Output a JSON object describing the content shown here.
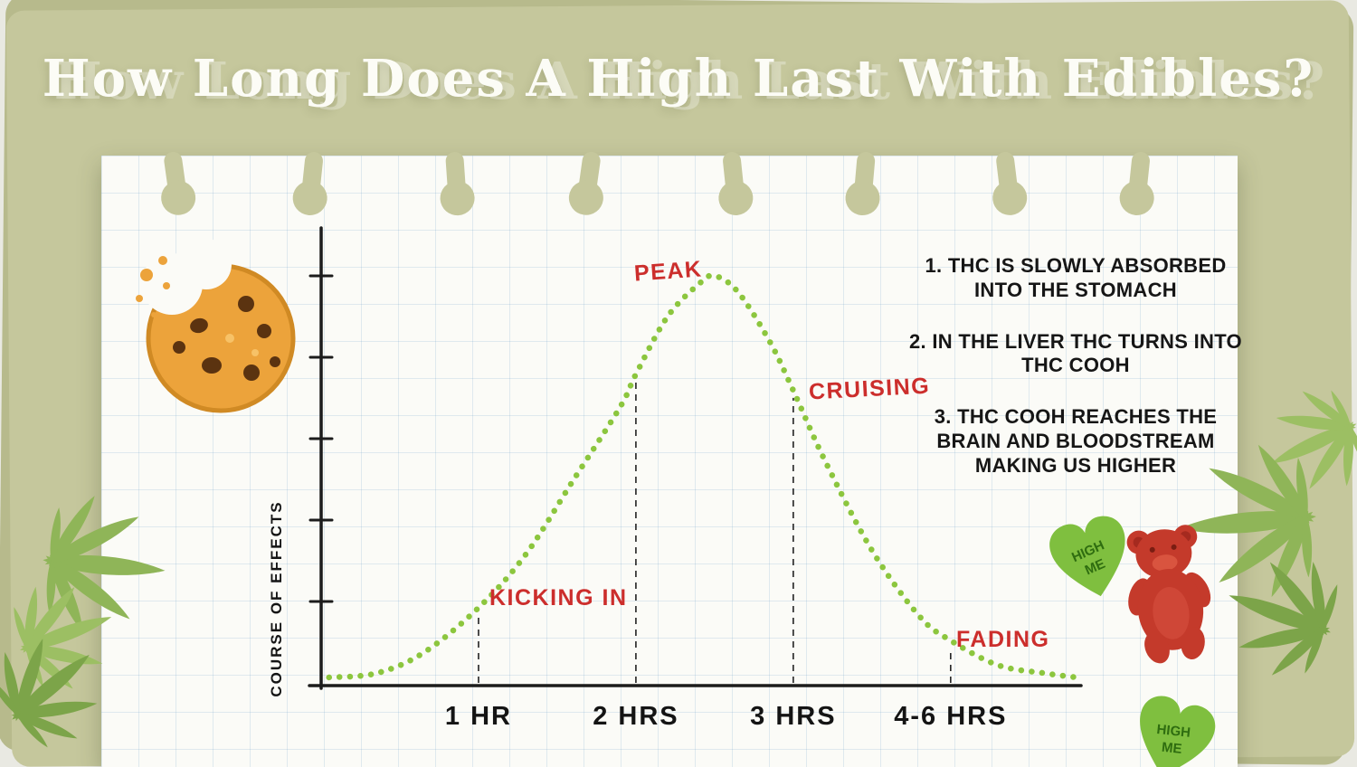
{
  "title": "How Long Does A High Last With Edibles?",
  "chart_data": {
    "type": "line",
    "title": "How Long Does A High Last With Edibles?",
    "xlabel": "",
    "ylabel": "COURSE OF EFFECTS",
    "x_tick_labels": [
      "1 HR",
      "2 HRS",
      "3 HRS",
      "4-6 HRS"
    ],
    "x_tick_positions": [
      1,
      2,
      3,
      4
    ],
    "xlim": [
      0,
      4.8
    ],
    "ylim": [
      0,
      100
    ],
    "grid": false,
    "legend": "none",
    "curve_color": "#8cc63e",
    "axis_color": "#1c1c1c",
    "annotation_color": "#cc2e2c",
    "curve": {
      "x": [
        0.05,
        0.35,
        0.65,
        1.0,
        1.3,
        1.6,
        1.9,
        2.0,
        2.2,
        2.4,
        2.5,
        2.65,
        2.85,
        3.0,
        3.2,
        3.5,
        3.8,
        4.0,
        4.3,
        4.6,
        4.8
      ],
      "y": [
        2,
        3,
        8,
        19,
        32,
        50,
        68,
        76,
        90,
        98,
        100,
        96,
        84,
        72,
        55,
        33,
        17,
        11,
        5,
        3,
        2
      ]
    },
    "annotations": [
      {
        "label": "KICKING IN",
        "x": 1.0,
        "y": 19
      },
      {
        "label": "PEAK",
        "x": 2.5,
        "y": 100
      },
      {
        "label": "CRUISING",
        "x": 3.0,
        "y": 72
      },
      {
        "label": "FADING",
        "x": 4.0,
        "y": 11
      }
    ]
  },
  "notes": {
    "items": [
      "1. THC IS SLOWLY ABSORBED INTO THE STOMACH",
      "2. IN THE LIVER THC TURNS INTO THC COOH",
      "3. THC COOH REACHES THE BRAIN AND BLOODSTREAM MAKING US HIGHER"
    ]
  },
  "decorations": {
    "candy_line1": "HIGH",
    "candy_line2": "ME",
    "candy_color": "#7fbf3f",
    "gummy_bear_color": "#c43a2b",
    "cookie_color": "#eca33b",
    "leaf_color": "#8fb558"
  }
}
